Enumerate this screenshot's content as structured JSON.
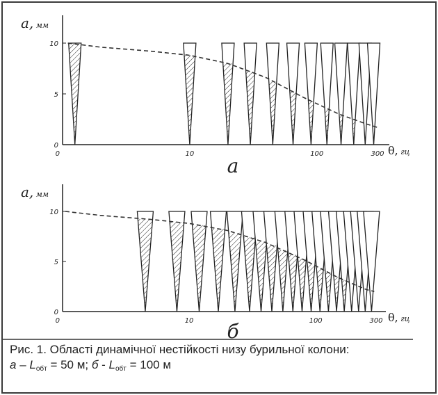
{
  "chart_data": [
    {
      "type": "line",
      "panel_label": "а",
      "ylabel_symbol": "a,",
      "ylabel_unit": "мм",
      "xlabel_symbol": "θ,",
      "xlabel_unit": "гц",
      "x_scale": "log",
      "xlim": [
        1,
        300
      ],
      "ylim": [
        0,
        10
      ],
      "y_ticks": [
        "0",
        "5",
        "10"
      ],
      "x_ticks": [
        {
          "value": 1,
          "label": "0"
        },
        {
          "value": 10,
          "label": "10"
        },
        {
          "value": 100,
          "label": "100"
        },
        {
          "value": 300,
          "label": "300"
        }
      ],
      "instability_regions": [
        {
          "center": 1.25,
          "hatched": true
        },
        {
          "center": 10,
          "hatched": true
        },
        {
          "center": 20,
          "hatched": true
        },
        {
          "center": 30,
          "hatched": true
        },
        {
          "center": 45,
          "hatched": true
        },
        {
          "center": 65,
          "hatched": true
        },
        {
          "center": 90,
          "hatched": true
        },
        {
          "center": 120,
          "hatched": true
        },
        {
          "center": 155,
          "hatched": true
        },
        {
          "center": 195,
          "hatched": true
        },
        {
          "center": 240,
          "hatched": false
        },
        {
          "center": 280,
          "hatched": false
        }
      ],
      "series": [
        {
          "style": "dashed",
          "x": [
            1.1,
            2,
            5,
            10,
            20,
            40,
            80,
            150,
            250,
            300
          ],
          "y": [
            10,
            9.6,
            9.2,
            8.8,
            8.0,
            6.6,
            4.6,
            3.0,
            2.0,
            1.7
          ]
        }
      ]
    },
    {
      "type": "line",
      "panel_label": "б",
      "ylabel_symbol": "a,",
      "ylabel_unit": "мм",
      "xlabel_symbol": "θ,",
      "xlabel_unit": "гц",
      "x_scale": "log",
      "xlim": [
        1,
        300
      ],
      "ylim": [
        0,
        10
      ],
      "y_ticks": [
        "0",
        "5",
        "10"
      ],
      "x_ticks": [
        {
          "value": 1,
          "label": "0"
        },
        {
          "value": 10,
          "label": "10"
        },
        {
          "value": 100,
          "label": "100"
        },
        {
          "value": 300,
          "label": "300"
        }
      ],
      "instability_regions": [
        {
          "center": 4.5,
          "hatched": true
        },
        {
          "center": 8,
          "hatched": true
        },
        {
          "center": 12,
          "hatched": true
        },
        {
          "center": 17,
          "hatched": true
        },
        {
          "center": 23,
          "hatched": true
        },
        {
          "center": 30,
          "hatched": true
        },
        {
          "center": 37,
          "hatched": true
        },
        {
          "center": 45,
          "hatched": true
        },
        {
          "center": 55,
          "hatched": true
        },
        {
          "center": 66,
          "hatched": true
        },
        {
          "center": 78,
          "hatched": true
        },
        {
          "center": 92,
          "hatched": true
        },
        {
          "center": 108,
          "hatched": true
        },
        {
          "center": 126,
          "hatched": true
        },
        {
          "center": 146,
          "hatched": true
        },
        {
          "center": 168,
          "hatched": true
        },
        {
          "center": 192,
          "hatched": false
        },
        {
          "center": 218,
          "hatched": false
        },
        {
          "center": 246,
          "hatched": false
        },
        {
          "center": 276,
          "hatched": false
        }
      ],
      "series": [
        {
          "style": "dashed",
          "x": [
            1.05,
            2,
            5,
            10,
            20,
            40,
            80,
            150,
            250,
            290
          ],
          "y": [
            10,
            9.6,
            9.2,
            8.8,
            8.1,
            6.9,
            5.2,
            3.4,
            2.2,
            2.0
          ]
        }
      ]
    }
  ],
  "caption": {
    "line1": "Рис. 1. Області динамічної нестійкості низу бурильної колони:",
    "a_letter": "а",
    "dash1": " – ",
    "L1": "L",
    "sub1": "обт",
    "eq1": " = 50 м; ",
    "b_letter": "б",
    "dash2": " - ",
    "L2": "L",
    "sub2": "обт",
    "eq2": " = 100 м"
  }
}
